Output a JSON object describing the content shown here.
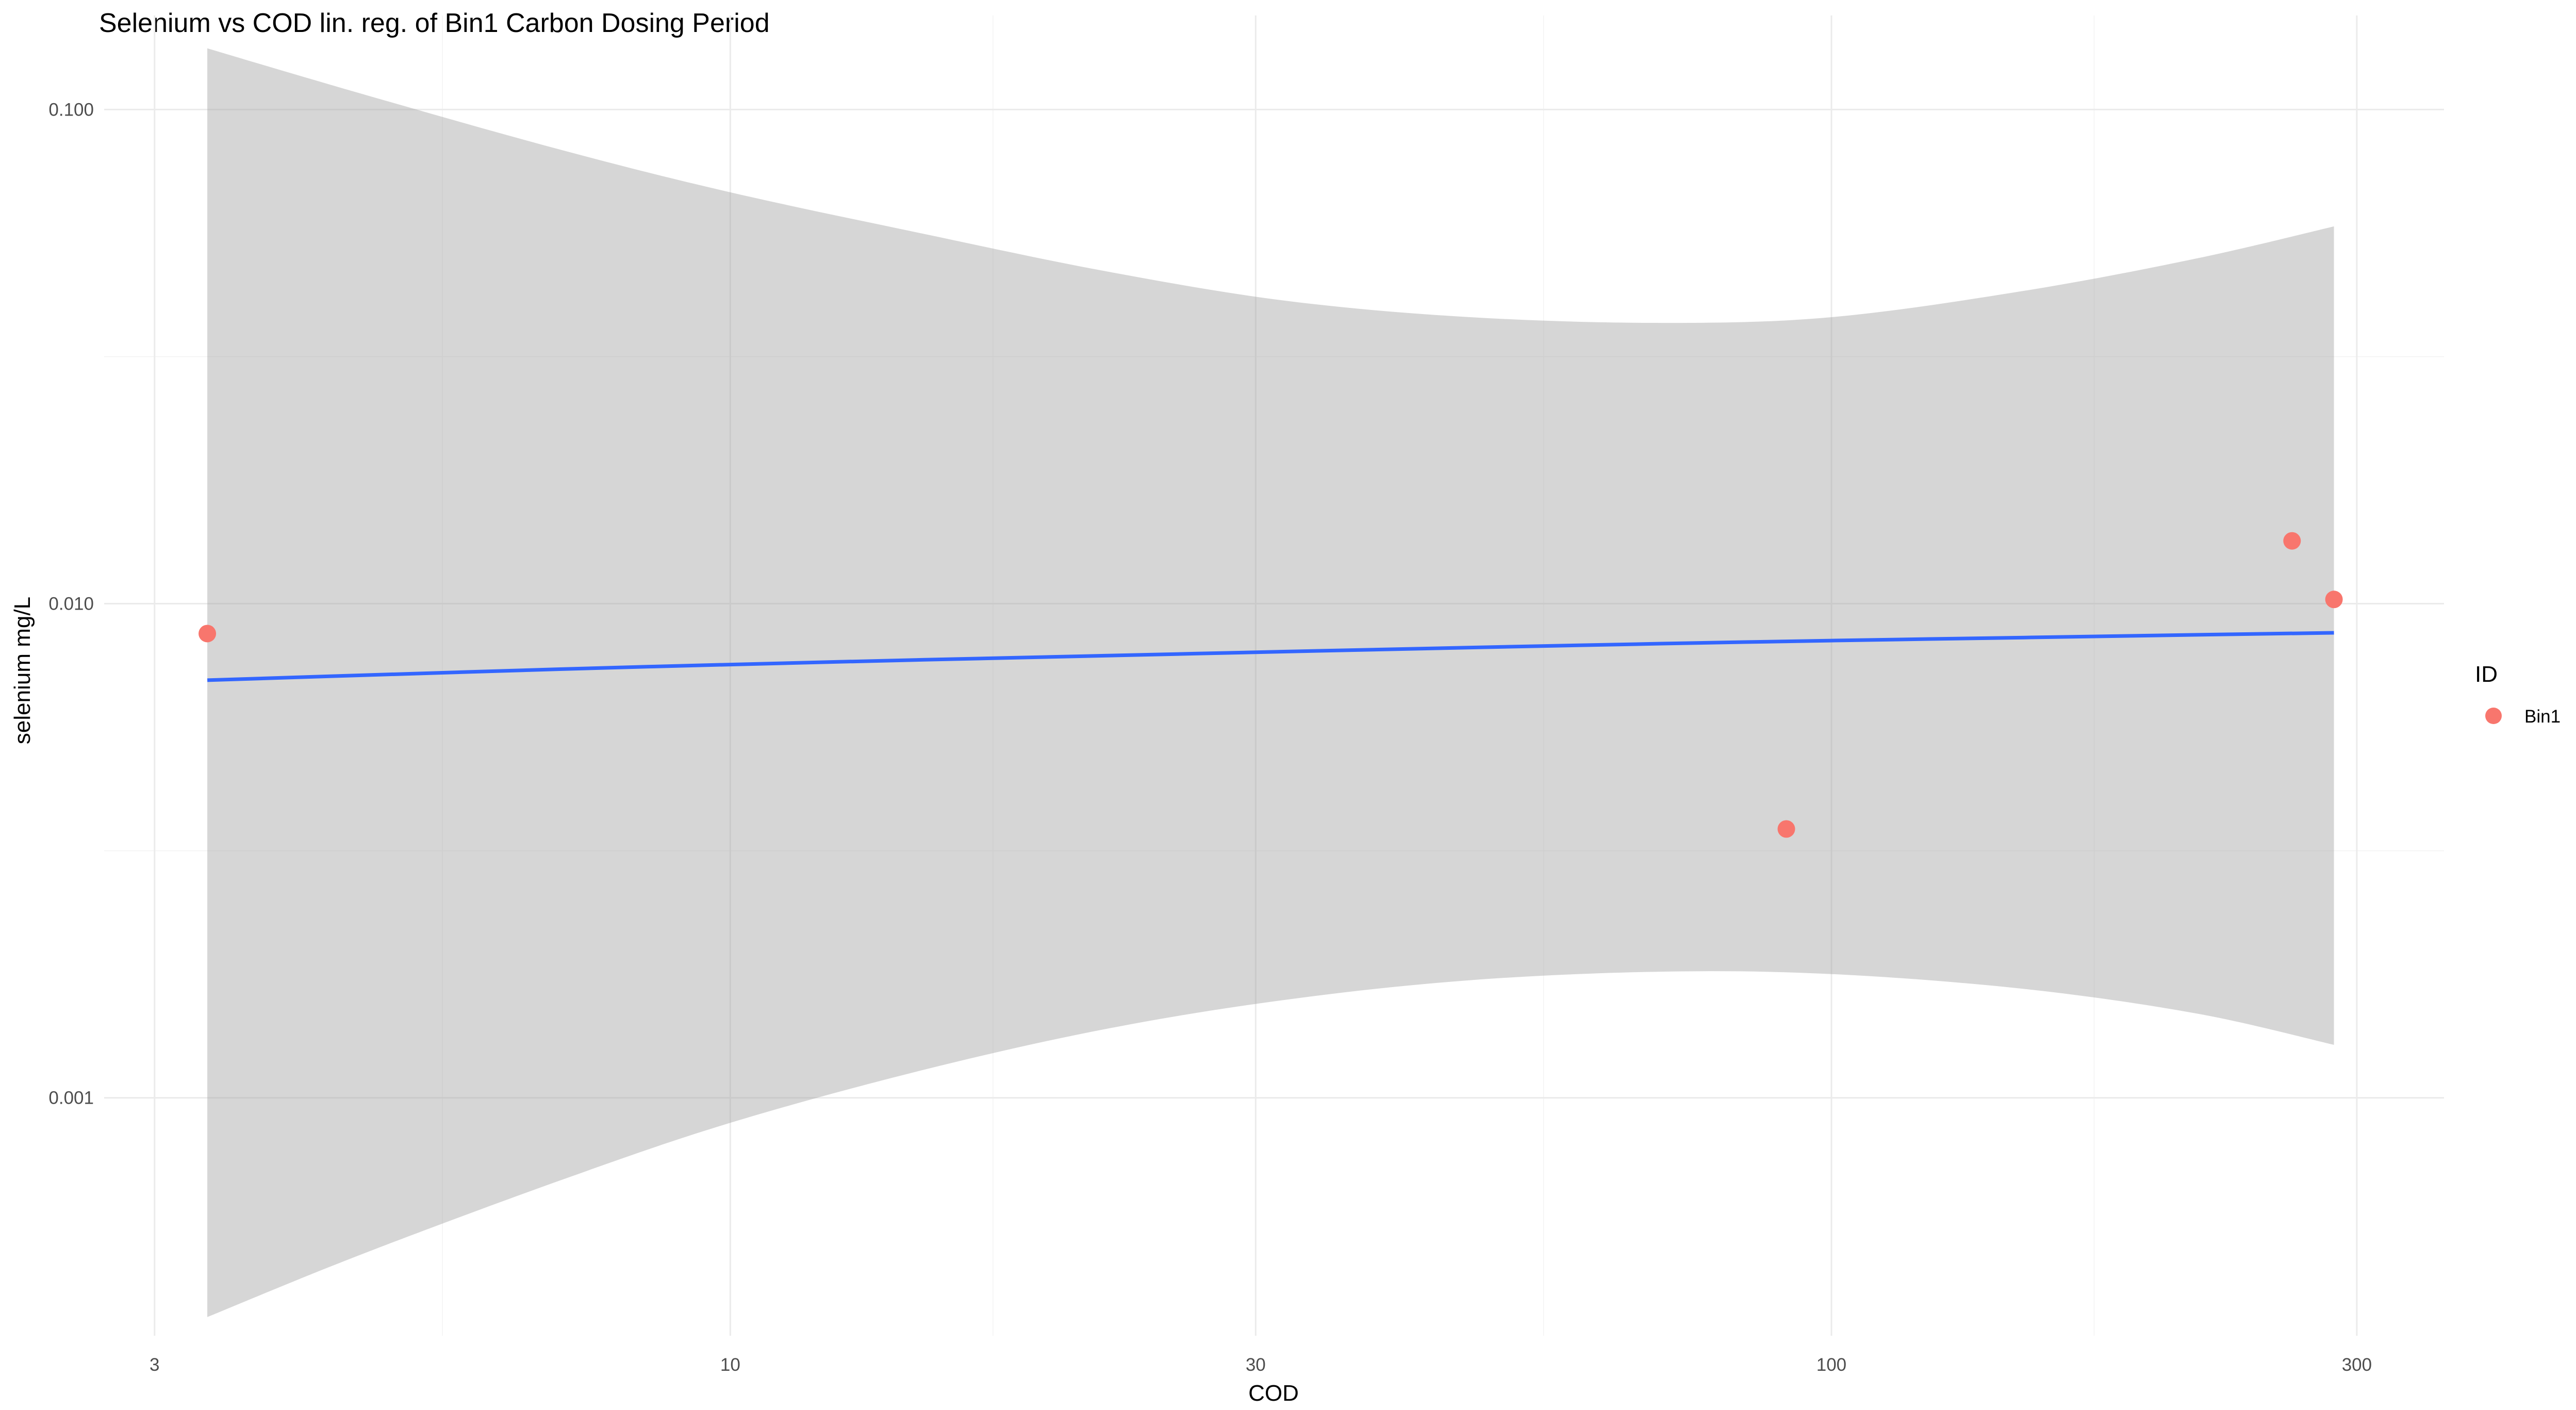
{
  "chart_data": {
    "type": "scatter",
    "title": "Selenium vs COD lin. reg. of Bin1 Carbon Dosing Period",
    "xlabel": "COD",
    "ylabel": "selenium mg/L",
    "x_scale": "log10",
    "y_scale": "log10",
    "xlim": [
      2.7,
      360
    ],
    "ylim": [
      0.00033,
      0.155
    ],
    "x_ticks": [
      {
        "value": 3,
        "label": "3"
      },
      {
        "value": 10,
        "label": "10"
      },
      {
        "value": 30,
        "label": "30"
      },
      {
        "value": 100,
        "label": "100"
      },
      {
        "value": 300,
        "label": "300"
      }
    ],
    "y_ticks": [
      {
        "value": 0.001,
        "label": "0.001"
      },
      {
        "value": 0.01,
        "label": "0.010"
      },
      {
        "value": 0.1,
        "label": "0.100"
      }
    ],
    "grid": true,
    "legend": {
      "title": "ID",
      "position": "right",
      "entries": [
        {
          "label": "Bin1",
          "color": "#F8766D"
        }
      ]
    },
    "series": [
      {
        "name": "Bin1",
        "color": "#F8766D",
        "points": [
          {
            "x": 3.35,
            "y": 0.0087
          },
          {
            "x": 91,
            "y": 0.0035
          },
          {
            "x": 262,
            "y": 0.0134
          },
          {
            "x": 286,
            "y": 0.0102
          }
        ]
      }
    ],
    "regression": {
      "color": "#3366FF",
      "band_color": "#999999",
      "x": [
        3.35,
        4.6,
        7,
        10,
        15,
        22,
        32,
        47,
        70,
        100,
        150,
        215,
        286
      ],
      "y": [
        0.007,
        0.00716,
        0.00737,
        0.00753,
        0.0077,
        0.00785,
        0.008,
        0.00815,
        0.0083,
        0.00842,
        0.00854,
        0.00865,
        0.00873
      ],
      "lower": [
        0.00036,
        0.00048,
        0.00068,
        0.00089,
        0.00114,
        0.00138,
        0.00158,
        0.00173,
        0.0018,
        0.00178,
        0.00166,
        0.00148,
        0.00128
      ],
      "upper": [
        0.133,
        0.108,
        0.083,
        0.068,
        0.056,
        0.047,
        0.041,
        0.038,
        0.037,
        0.038,
        0.043,
        0.05,
        0.058
      ]
    }
  }
}
